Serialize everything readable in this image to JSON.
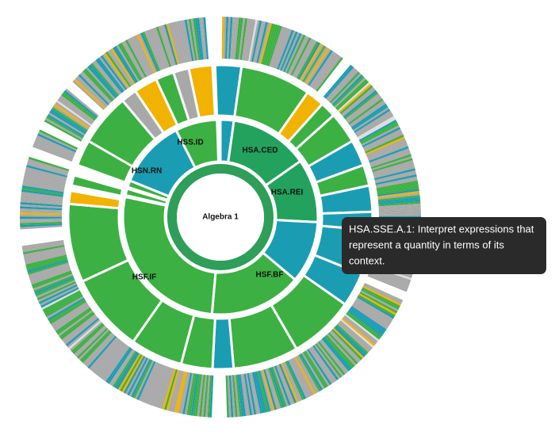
{
  "chart_data": {
    "type": "sunburst",
    "center_label": "Algebra 1",
    "segment_labels": [
      "HSS.ID",
      "HSA.CED",
      "HSA.REI",
      "HSN.RN",
      "HSF.IF",
      "HSF.BF"
    ],
    "tooltip": [
      "HSA.SSE.A.1: Interpret expressions that",
      "represent a quantity in terms of its",
      "context."
    ]
  }
}
